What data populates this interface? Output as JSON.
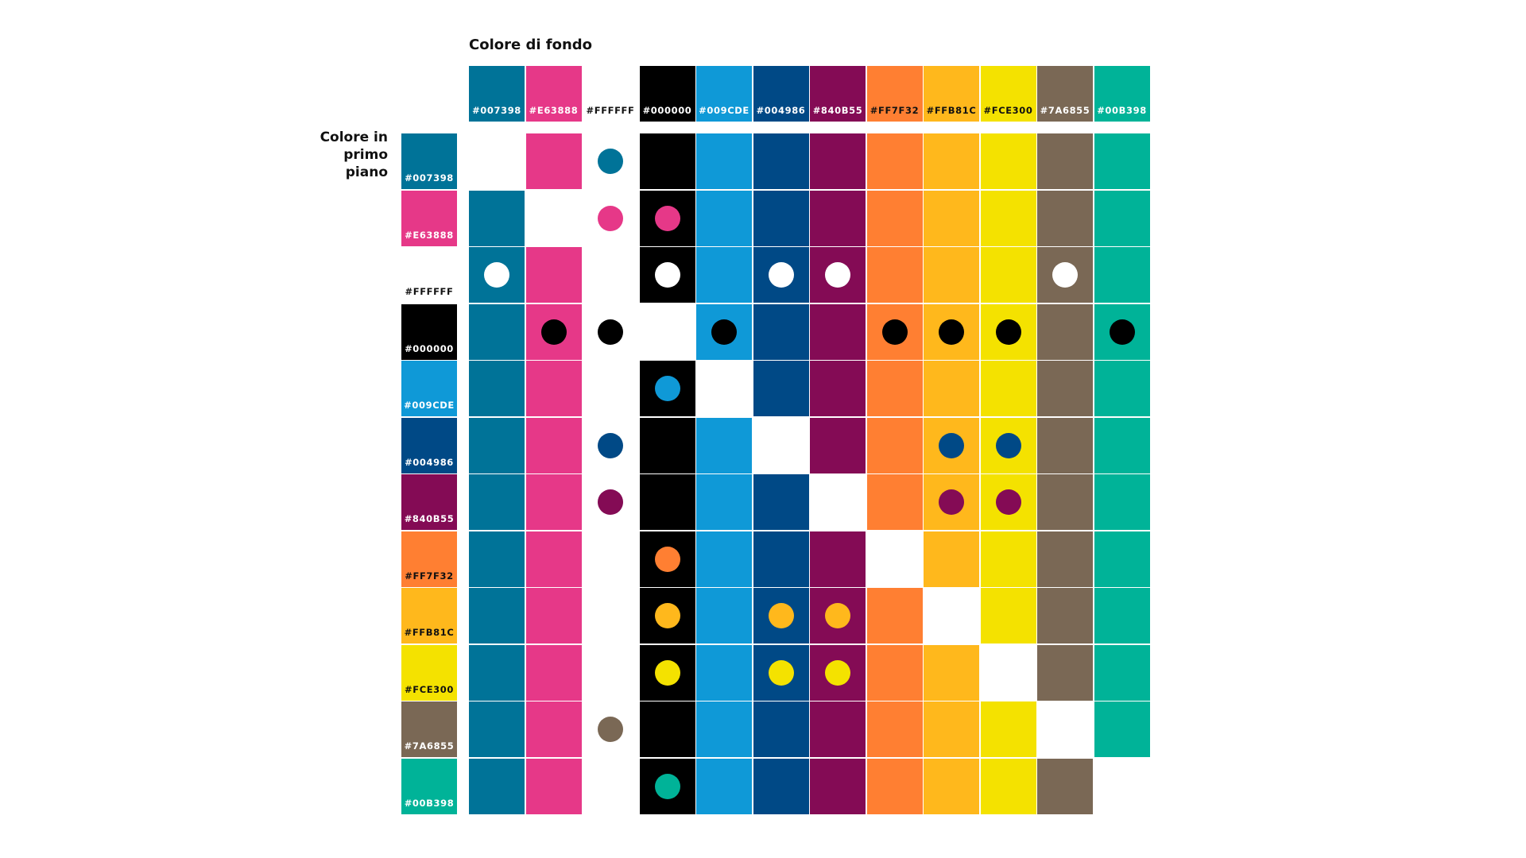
{
  "labels": {
    "background_title": "Colore di fondo",
    "foreground_title": "Colore in primo piano"
  },
  "colors": [
    {
      "code": "#007398",
      "hex": "#007398",
      "text_color": "#ffffff"
    },
    {
      "code": "#E63888",
      "hex": "#E63888",
      "text_color": "#ffffff"
    },
    {
      "code": "#FFFFFF",
      "hex": "#FFFFFF",
      "text_color": "#111111"
    },
    {
      "code": "#000000",
      "hex": "#000000",
      "text_color": "#ffffff"
    },
    {
      "code": "#009CDE",
      "hex": "#0F99D7",
      "text_color": "#ffffff"
    },
    {
      "code": "#004986",
      "hex": "#004986",
      "text_color": "#ffffff"
    },
    {
      "code": "#840B55",
      "hex": "#840B55",
      "text_color": "#ffffff"
    },
    {
      "code": "#FF7F32",
      "hex": "#FF7F32",
      "text_color": "#111111"
    },
    {
      "code": "#FFB81C",
      "hex": "#FFB81C",
      "text_color": "#111111"
    },
    {
      "code": "#FCE300",
      "hex": "#F4E200",
      "text_color": "#111111"
    },
    {
      "code": "#7A6855",
      "hex": "#7A6855",
      "text_color": "#ffffff"
    },
    {
      "code": "#00B398",
      "hex": "#00B398",
      "text_color": "#ffffff"
    }
  ],
  "compatible_pairs": [
    {
      "foreground": "#007398",
      "backgrounds": [
        "#FFFFFF"
      ]
    },
    {
      "foreground": "#E63888",
      "backgrounds": [
        "#FFFFFF",
        "#000000"
      ]
    },
    {
      "foreground": "#FFFFFF",
      "backgrounds": [
        "#007398",
        "#000000",
        "#004986",
        "#840B55",
        "#7A6855"
      ]
    },
    {
      "foreground": "#000000",
      "backgrounds": [
        "#E63888",
        "#FFFFFF",
        "#009CDE",
        "#FF7F32",
        "#FFB81C",
        "#FCE300",
        "#00B398"
      ]
    },
    {
      "foreground": "#009CDE",
      "backgrounds": [
        "#000000"
      ]
    },
    {
      "foreground": "#004986",
      "backgrounds": [
        "#FFFFFF",
        "#FFB81C",
        "#FCE300"
      ]
    },
    {
      "foreground": "#840B55",
      "backgrounds": [
        "#FFFFFF",
        "#FFB81C",
        "#FCE300"
      ]
    },
    {
      "foreground": "#FF7F32",
      "backgrounds": [
        "#000000"
      ]
    },
    {
      "foreground": "#FFB81C",
      "backgrounds": [
        "#000000",
        "#004986",
        "#840B55"
      ]
    },
    {
      "foreground": "#FCE300",
      "backgrounds": [
        "#000000",
        "#004986",
        "#840B55"
      ]
    },
    {
      "foreground": "#7A6855",
      "backgrounds": [
        "#FFFFFF"
      ]
    },
    {
      "foreground": "#00B398",
      "backgrounds": [
        "#000000"
      ]
    }
  ]
}
